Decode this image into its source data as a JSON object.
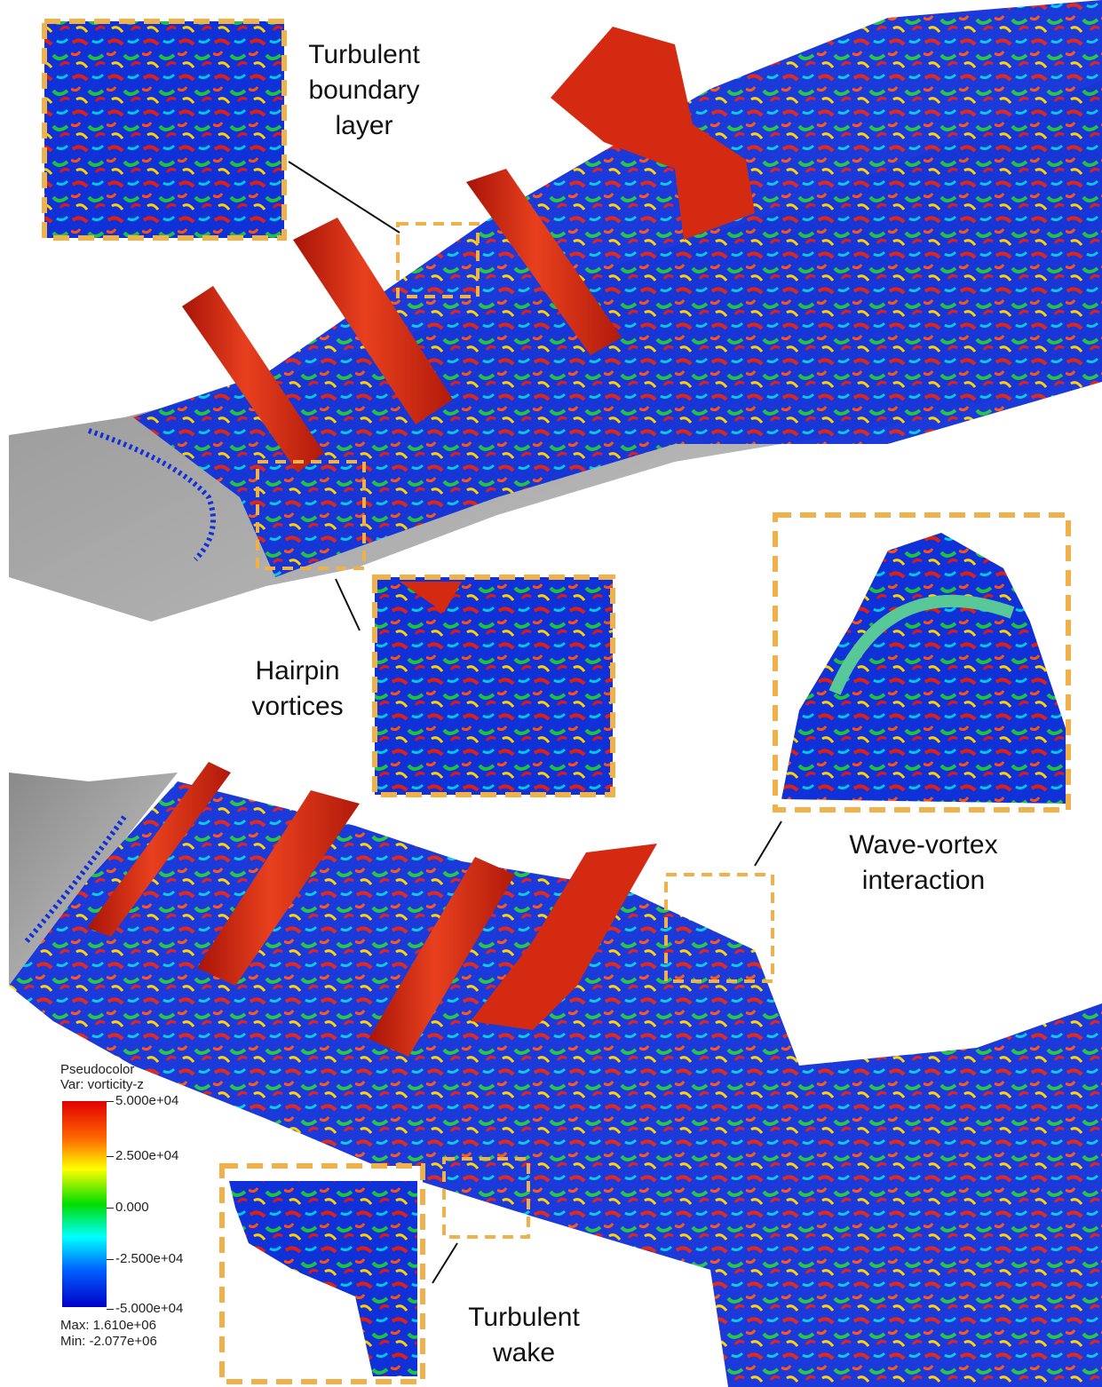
{
  "labels": {
    "turbulent_boundary_layer": [
      "Turbulent",
      "boundary",
      "layer"
    ],
    "hairpin_vortices": [
      "Hairpin",
      "vortices"
    ],
    "wave_vortex_interaction": [
      "Wave-vortex",
      "interaction"
    ],
    "turbulent_wake": [
      "Turbulent",
      "wake"
    ]
  },
  "legend": {
    "title": "Pseudocolor",
    "var": "Var: vorticity-z",
    "ticks": [
      "5.000e+04",
      "2.500e+04",
      "0.000",
      "-2.500e+04",
      "-5.000e+04"
    ],
    "max": "Max:  1.610e+06",
    "min": "Min: -2.077e+06"
  },
  "colors": {
    "inset_border": "#f0b04a",
    "cylinder": "#d42a12",
    "surface": "#9a9a9a"
  }
}
